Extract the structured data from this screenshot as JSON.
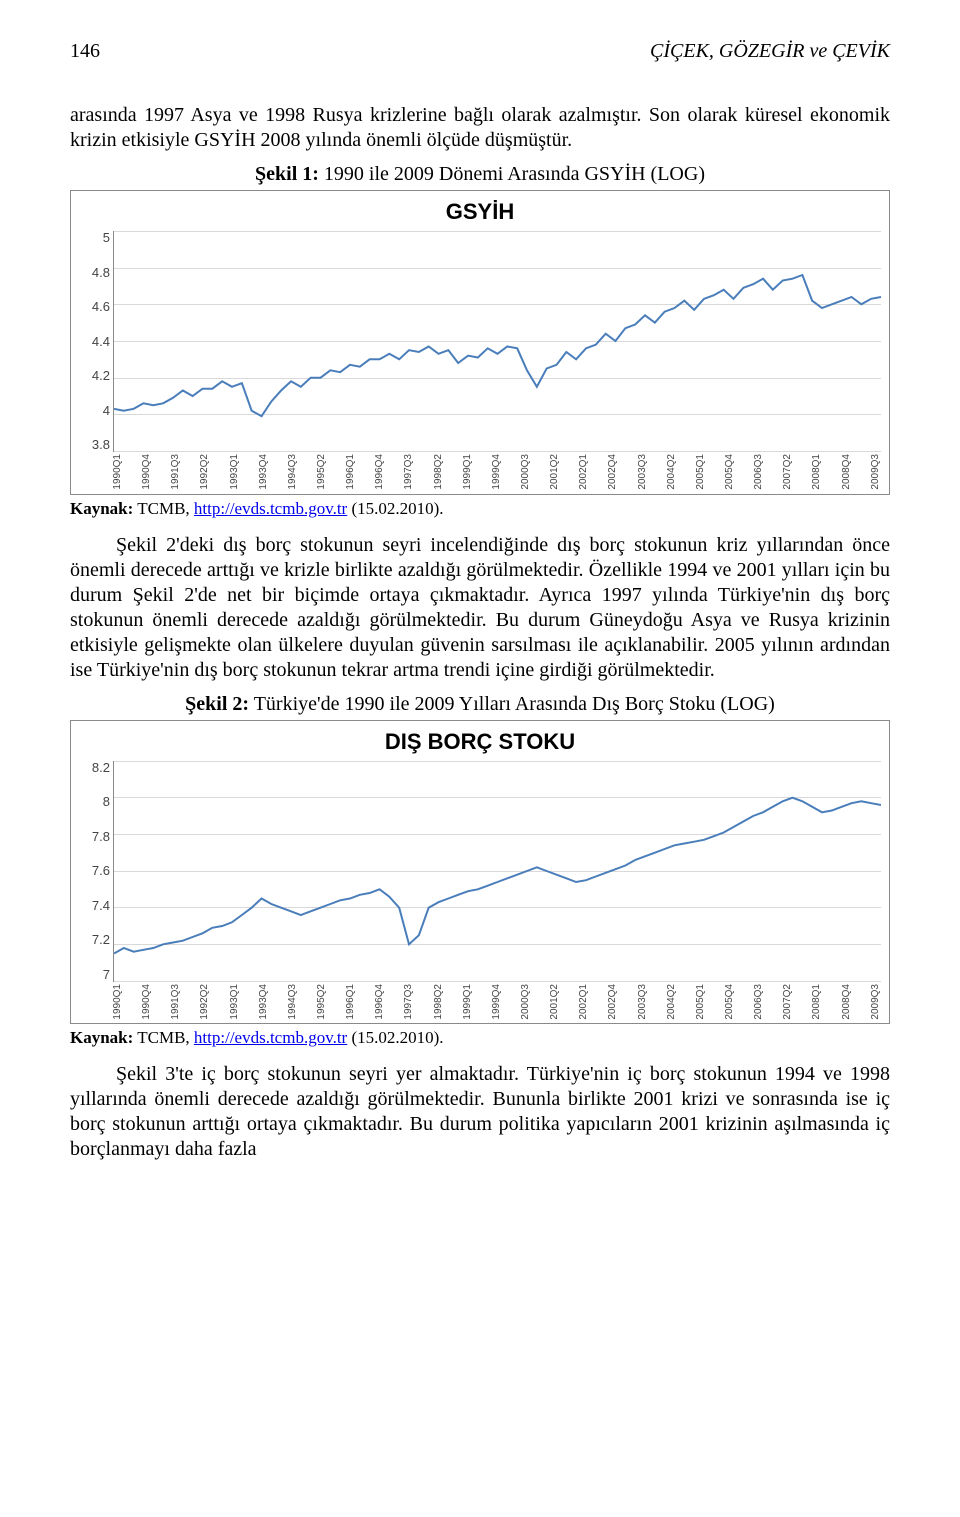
{
  "header": {
    "page_number": "146",
    "running_head": "ÇİÇEK, GÖZEGİR ve ÇEVİK"
  },
  "paragraphs": {
    "p1": "arasında 1997 Asya ve 1998 Rusya krizlerine bağlı olarak azalmıştır. Son olarak küresel ekonomik krizin etkisiyle GSYİH 2008 yılında önemli ölçüde düşmüştür.",
    "p2": "Şekil 2'deki dış borç stokunun seyri incelendiğinde dış borç stokunun kriz yıllarından önce önemli derecede arttığı ve krizle birlikte azaldığı görülmektedir. Özellikle 1994 ve 2001 yılları için bu durum Şekil 2'de net bir biçimde ortaya çıkmaktadır. Ayrıca 1997 yılında Türkiye'nin dış borç stokunun önemli derecede azaldığı görülmektedir. Bu durum Güneydoğu Asya ve Rusya krizinin etkisiyle gelişmekte olan ülkelere duyulan güvenin sarsılması ile açıklanabilir. 2005 yılının ardından ise Türkiye'nin dış borç stokunun tekrar artma trendi içine girdiği görülmektedir.",
    "p3": "Şekil 3'te iç borç stokunun seyri yer almaktadır. Türkiye'nin iç borç stokunun 1994 ve 1998 yıllarında önemli derecede azaldığı görülmektedir. Bununla birlikte 2001 krizi ve sonrasında ise iç borç stokunun arttığı ortaya çıkmaktadır. Bu durum politika yapıcıların 2001 krizinin aşılmasında iç borçlanmayı daha fazla"
  },
  "figures": {
    "fig1": {
      "caption_label": "Şekil 1:",
      "caption_text": " 1990 ile 2009 Dönemi Arasında GSYİH (LOG)",
      "title": "GSYİH",
      "type": "line",
      "line_color": "#4a7ebb",
      "line_width": 2,
      "background": "#ffffff",
      "grid_color": "#d9d9d9",
      "ylim": [
        3.8,
        5.0
      ],
      "yticks": [
        "5",
        "4.8",
        "4.6",
        "4.4",
        "4.2",
        "4",
        "3.8"
      ],
      "xticks": [
        "1990Q1",
        "1990Q4",
        "1991Q3",
        "1992Q2",
        "1993Q1",
        "1993Q4",
        "1994Q3",
        "1995Q2",
        "1996Q1",
        "1996Q4",
        "1997Q3",
        "1998Q2",
        "1999Q1",
        "1999Q4",
        "2000Q3",
        "2001Q2",
        "2002Q1",
        "2002Q4",
        "2003Q3",
        "2004Q2",
        "2005Q1",
        "2005Q4",
        "2006Q3",
        "2007Q2",
        "2008Q1",
        "2008Q4",
        "2009Q3"
      ],
      "values": [
        4.03,
        4.02,
        4.03,
        4.06,
        4.05,
        4.06,
        4.09,
        4.13,
        4.1,
        4.14,
        4.14,
        4.18,
        4.15,
        4.17,
        4.02,
        3.99,
        4.07,
        4.13,
        4.18,
        4.15,
        4.2,
        4.2,
        4.24,
        4.23,
        4.27,
        4.26,
        4.3,
        4.3,
        4.33,
        4.3,
        4.35,
        4.34,
        4.37,
        4.33,
        4.35,
        4.28,
        4.32,
        4.31,
        4.36,
        4.33,
        4.37,
        4.36,
        4.24,
        4.15,
        4.25,
        4.27,
        4.34,
        4.3,
        4.36,
        4.38,
        4.44,
        4.4,
        4.47,
        4.49,
        4.54,
        4.5,
        4.56,
        4.58,
        4.62,
        4.57,
        4.63,
        4.65,
        4.68,
        4.63,
        4.69,
        4.71,
        4.74,
        4.68,
        4.73,
        4.74,
        4.76,
        4.62,
        4.58,
        4.6,
        4.62,
        4.64,
        4.6,
        4.63,
        4.64
      ]
    },
    "fig2": {
      "caption_label": "Şekil 2:",
      "caption_text": " Türkiye'de 1990 ile 2009 Yılları Arasında Dış Borç Stoku (LOG)",
      "title": "DIŞ BORÇ STOKU",
      "type": "line",
      "line_color": "#4a7ebb",
      "line_width": 2,
      "background": "#ffffff",
      "grid_color": "#d9d9d9",
      "ylim": [
        7.0,
        8.2
      ],
      "yticks": [
        "8.2",
        "8",
        "7.8",
        "7.6",
        "7.4",
        "7.2",
        "7"
      ],
      "xticks": [
        "1990Q1",
        "1990Q4",
        "1991Q3",
        "1992Q2",
        "1993Q1",
        "1993Q4",
        "1994Q3",
        "1995Q2",
        "1996Q1",
        "1996Q4",
        "1997Q3",
        "1998Q2",
        "1999Q1",
        "1999Q4",
        "2000Q3",
        "2001Q2",
        "2002Q1",
        "2002Q4",
        "2003Q3",
        "2004Q2",
        "2005Q1",
        "2005Q4",
        "2006Q3",
        "2007Q2",
        "2008Q1",
        "2008Q4",
        "2009Q3"
      ],
      "values": [
        7.15,
        7.18,
        7.16,
        7.17,
        7.18,
        7.2,
        7.21,
        7.22,
        7.24,
        7.26,
        7.29,
        7.3,
        7.32,
        7.36,
        7.4,
        7.45,
        7.42,
        7.4,
        7.38,
        7.36,
        7.38,
        7.4,
        7.42,
        7.44,
        7.45,
        7.47,
        7.48,
        7.5,
        7.46,
        7.4,
        7.2,
        7.25,
        7.4,
        7.43,
        7.45,
        7.47,
        7.49,
        7.5,
        7.52,
        7.54,
        7.56,
        7.58,
        7.6,
        7.62,
        7.6,
        7.58,
        7.56,
        7.54,
        7.55,
        7.57,
        7.59,
        7.61,
        7.63,
        7.66,
        7.68,
        7.7,
        7.72,
        7.74,
        7.75,
        7.76,
        7.77,
        7.79,
        7.81,
        7.84,
        7.87,
        7.9,
        7.92,
        7.95,
        7.98,
        8.0,
        7.98,
        7.95,
        7.92,
        7.93,
        7.95,
        7.97,
        7.98,
        7.97,
        7.96
      ]
    }
  },
  "sources": {
    "label": "Kaynak:",
    "text_before_link": " TCMB, ",
    "link_text": "http://evds.tcmb.gov.tr",
    "text_after_link": " (15.02.2010)."
  }
}
